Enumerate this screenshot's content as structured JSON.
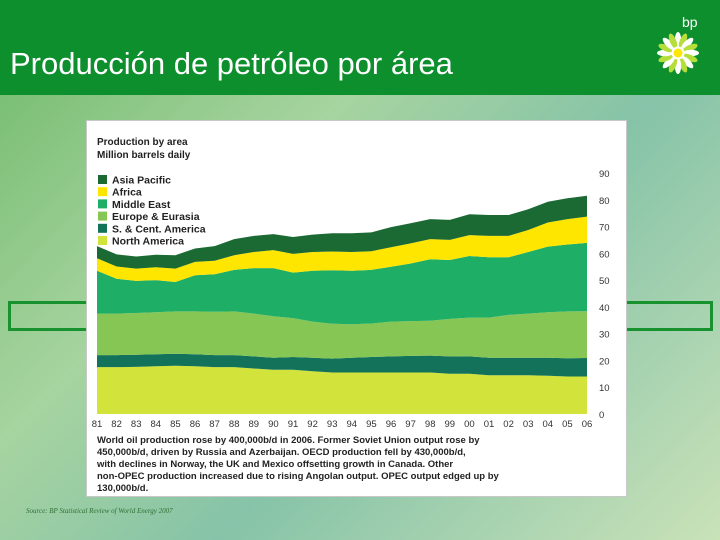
{
  "slide": {
    "title": "Producción de petróleo por área",
    "logo_text": "bp",
    "source": "Source: BP Statistical Review of World Energy 2007"
  },
  "colors": {
    "header": "#0c8f2c",
    "asia_pacific": "#1c6a33",
    "africa": "#ffe600",
    "middle_east": "#1fae66",
    "europe_eurasia": "#86c654",
    "s_cent_america": "#13735a",
    "north_america": "#d2e33b"
  },
  "chart_data": {
    "type": "area",
    "stacked": true,
    "title": "Production by area",
    "subtitle": "Million barrels daily",
    "x": [
      "81",
      "82",
      "83",
      "84",
      "85",
      "86",
      "87",
      "88",
      "89",
      "90",
      "91",
      "92",
      "93",
      "94",
      "95",
      "96",
      "97",
      "98",
      "99",
      "00",
      "01",
      "02",
      "03",
      "04",
      "05",
      "06"
    ],
    "xlim": [
      81,
      106
    ],
    "ylim": [
      0,
      90
    ],
    "yticks": [
      0,
      10,
      20,
      30,
      40,
      50,
      60,
      70,
      80,
      90
    ],
    "grid": false,
    "legend_position": "top-left",
    "series": [
      {
        "name": "North America",
        "color": "#d2e33b",
        "values": [
          17.5,
          17.5,
          17.6,
          17.8,
          18.0,
          17.8,
          17.5,
          17.5,
          17.0,
          16.5,
          16.5,
          16.0,
          15.5,
          15.5,
          15.5,
          15.5,
          15.5,
          15.5,
          15.0,
          15.0,
          14.5,
          14.5,
          14.5,
          14.3,
          14.0,
          14.0
        ]
      },
      {
        "name": "S. & Cent. America",
        "color": "#13735a",
        "values": [
          4.5,
          4.5,
          4.5,
          4.5,
          4.5,
          4.5,
          4.5,
          4.5,
          4.5,
          4.5,
          4.8,
          5.0,
          5.2,
          5.5,
          5.8,
          6.0,
          6.2,
          6.3,
          6.5,
          6.5,
          6.5,
          6.5,
          6.5,
          6.7,
          6.8,
          6.9
        ]
      },
      {
        "name": "Europe & Eurasia",
        "color": "#86c654",
        "values": [
          15.5,
          15.5,
          15.6,
          15.7,
          15.8,
          16.0,
          16.2,
          16.3,
          16.0,
          15.5,
          14.5,
          13.5,
          13.0,
          12.5,
          12.5,
          13.0,
          13.0,
          13.0,
          14.0,
          14.5,
          15.0,
          16.0,
          16.5,
          17.0,
          17.5,
          17.5
        ]
      },
      {
        "name": "Middle East",
        "color": "#1fae66",
        "values": [
          16.0,
          13.0,
          12.0,
          12.0,
          11.0,
          13.5,
          14.0,
          15.5,
          17.0,
          18.0,
          17.0,
          19.0,
          20.0,
          20.0,
          20.0,
          20.5,
          21.5,
          23.0,
          22.0,
          23.0,
          22.5,
          21.5,
          23.0,
          24.5,
          25.0,
          25.5
        ]
      },
      {
        "name": "Africa",
        "color": "#ffe600",
        "values": [
          4.7,
          4.6,
          4.6,
          4.8,
          5.0,
          5.0,
          5.0,
          5.5,
          6.0,
          6.7,
          7.0,
          7.0,
          7.0,
          7.0,
          7.0,
          7.3,
          7.5,
          7.5,
          7.5,
          7.8,
          8.0,
          8.0,
          8.2,
          9.0,
          9.5,
          9.8
        ]
      },
      {
        "name": "Asia Pacific",
        "color": "#1c6a33",
        "values": [
          4.5,
          4.5,
          4.5,
          4.7,
          5.0,
          5.0,
          5.5,
          6.0,
          6.0,
          6.0,
          6.3,
          6.5,
          6.8,
          7.0,
          7.0,
          7.5,
          7.5,
          7.5,
          7.5,
          7.8,
          7.8,
          7.8,
          7.8,
          7.8,
          7.8,
          7.8
        ]
      }
    ],
    "legend_order": [
      "Asia Pacific",
      "Africa",
      "Middle East",
      "Europe & Eurasia",
      "S. & Cent. America",
      "North America"
    ],
    "caption": "World oil production rose by 400,000b/d in 2006. Former Soviet Union output rose by 450,000b/d, driven by Russia and Azerbaijan. OECD production fell by 430,000b/d, with declines in Norway, the UK and Mexico offsetting growth in Canada. Other non-OPEC production increased due to rising Angolan output. OPEC output edged up by 130,000b/d."
  }
}
